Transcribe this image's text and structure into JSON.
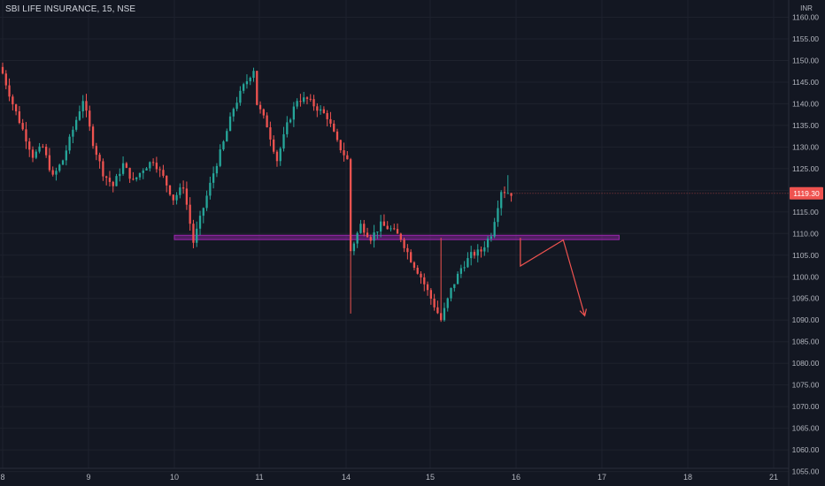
{
  "header": {
    "symbol_line": "SBI LIFE INSURANCE, 15, NSE"
  },
  "colors": {
    "background": "#131722",
    "up": "#26a69a",
    "down": "#ef5350",
    "zone": "#9c27b0",
    "axis_text": "#b2b5be",
    "grid": "#1e222d"
  },
  "chart_data": {
    "type": "candlestick",
    "currency_label": "INR",
    "current_price": 1119.3,
    "current_price_label": "1119.30",
    "y_axis": {
      "min": 1055,
      "max": 1160,
      "step": 5,
      "side": "right"
    },
    "x_ticks": [
      {
        "label": "8",
        "day": 8
      },
      {
        "label": "9",
        "day": 9
      },
      {
        "label": "10",
        "day": 10
      },
      {
        "label": "11",
        "day": 11
      },
      {
        "label": "14",
        "day": 14
      },
      {
        "label": "15",
        "day": 15
      },
      {
        "label": "16",
        "day": 16
      },
      {
        "label": "17",
        "day": 17
      },
      {
        "label": "18",
        "day": 18
      },
      {
        "label": "21",
        "day": 21
      }
    ],
    "zone": {
      "low": 1108.6,
      "high": 1109.6,
      "from_day": 10,
      "to_day": 17.2,
      "color": "#9c27b0"
    },
    "projection": {
      "color": "#ef5350",
      "points": [
        [
          16.05,
          1109
        ],
        [
          16.05,
          1102.5
        ],
        [
          16.55,
          1108.5
        ],
        [
          16.8,
          1091
        ]
      ]
    },
    "anchors": [
      [
        0,
        1147
      ],
      [
        3,
        1140
      ],
      [
        6,
        1134
      ],
      [
        9,
        1128
      ],
      [
        12,
        1130
      ],
      [
        15,
        1123
      ],
      [
        18,
        1127
      ],
      [
        21,
        1134
      ],
      [
        24,
        1141
      ],
      [
        27,
        1131
      ],
      [
        30,
        1124
      ],
      [
        33,
        1121
      ],
      [
        36,
        1126
      ],
      [
        39,
        1122
      ],
      [
        42,
        1125
      ],
      [
        45,
        1127
      ],
      [
        48,
        1123
      ],
      [
        51,
        1118
      ],
      [
        54,
        1121
      ],
      [
        57,
        1108
      ],
      [
        60,
        1116
      ],
      [
        63,
        1124
      ],
      [
        66,
        1131
      ],
      [
        69,
        1139
      ],
      [
        72,
        1144
      ],
      [
        75,
        1148
      ],
      [
        76,
        1140
      ],
      [
        79,
        1135
      ],
      [
        82,
        1127
      ],
      [
        85,
        1135
      ],
      [
        88,
        1141
      ],
      [
        91,
        1141
      ],
      [
        94,
        1139
      ],
      [
        97,
        1137
      ],
      [
        100,
        1131
      ],
      [
        103,
        1127
      ],
      [
        104,
        1106
      ],
      [
        107,
        1112
      ],
      [
        110,
        1109
      ],
      [
        113,
        1112
      ],
      [
        116,
        1111
      ],
      [
        119,
        1109
      ],
      [
        122,
        1104
      ],
      [
        125,
        1100
      ],
      [
        128,
        1095
      ],
      [
        131,
        1090
      ],
      [
        134,
        1097
      ],
      [
        137,
        1102
      ],
      [
        140,
        1105
      ],
      [
        143,
        1106
      ],
      [
        146,
        1110
      ],
      [
        149,
        1120
      ],
      [
        152,
        1119.3
      ]
    ]
  }
}
